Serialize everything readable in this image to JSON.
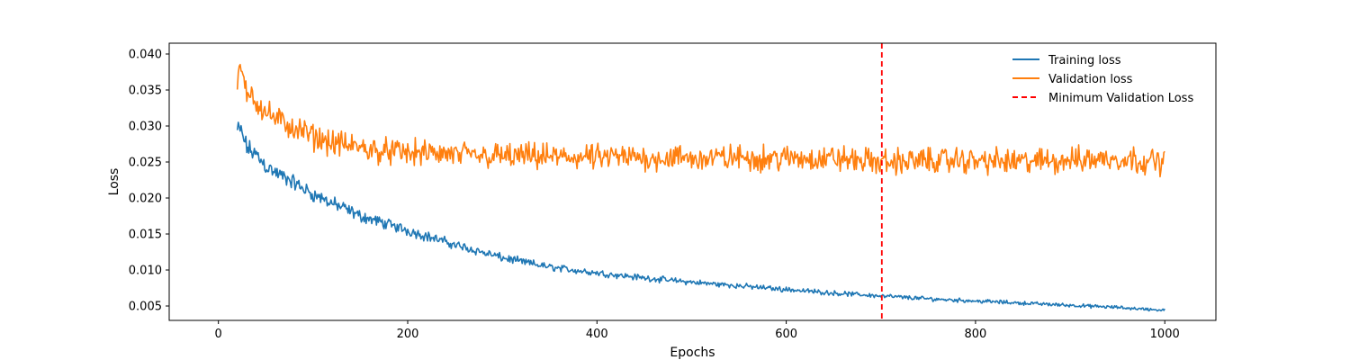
{
  "chart_data": {
    "type": "line",
    "title": "",
    "xlabel": "Epochs",
    "ylabel": "Loss",
    "xlim": [
      -52,
      1054
    ],
    "ylim": [
      0.003,
      0.0415
    ],
    "x_ticks": [
      0,
      200,
      400,
      600,
      800,
      1000
    ],
    "y_ticks": [
      0.005,
      0.01,
      0.015,
      0.02,
      0.025,
      0.03,
      0.035,
      0.04
    ],
    "x_tick_labels": [
      "0",
      "200",
      "400",
      "600",
      "800",
      "1000"
    ],
    "y_tick_labels": [
      "0.005",
      "0.010",
      "0.015",
      "0.020",
      "0.025",
      "0.030",
      "0.035",
      "0.040"
    ],
    "grid": false,
    "legend_position": "top-right",
    "series": [
      {
        "name": "Training loss",
        "color": "#1f77b4",
        "style": "solid",
        "x": [
          20,
          25,
          30,
          35,
          40,
          50,
          60,
          75,
          100,
          125,
          150,
          175,
          200,
          250,
          300,
          350,
          400,
          450,
          500,
          550,
          600,
          650,
          700,
          750,
          800,
          850,
          900,
          950,
          1000
        ],
        "y": [
          0.0295,
          0.029,
          0.027,
          0.0265,
          0.026,
          0.0245,
          0.0235,
          0.0225,
          0.0205,
          0.019,
          0.0175,
          0.0165,
          0.0155,
          0.0135,
          0.0117,
          0.0104,
          0.0096,
          0.0089,
          0.0083,
          0.0078,
          0.0073,
          0.0068,
          0.0064,
          0.006,
          0.0057,
          0.0054,
          0.0051,
          0.0048,
          0.0044
        ]
      },
      {
        "name": "Validation loss",
        "color": "#ff7f0e",
        "style": "solid",
        "x": [
          20,
          25,
          30,
          35,
          40,
          50,
          60,
          75,
          100,
          125,
          150,
          175,
          200,
          250,
          300,
          350,
          400,
          450,
          500,
          550,
          600,
          650,
          700,
          750,
          800,
          850,
          900,
          950,
          1000
        ],
        "y": [
          0.037,
          0.0375,
          0.034,
          0.035,
          0.0335,
          0.032,
          0.031,
          0.03,
          0.0285,
          0.0275,
          0.027,
          0.0265,
          0.0263,
          0.026,
          0.0258,
          0.0257,
          0.0256,
          0.0256,
          0.0255,
          0.0256,
          0.0255,
          0.0255,
          0.025,
          0.0252,
          0.0252,
          0.025,
          0.0253,
          0.0255,
          0.025
        ]
      }
    ],
    "vlines": [
      {
        "name": "Minimum Validation Loss",
        "x": 701,
        "color": "#ff0000",
        "style": "dashed"
      }
    ]
  }
}
